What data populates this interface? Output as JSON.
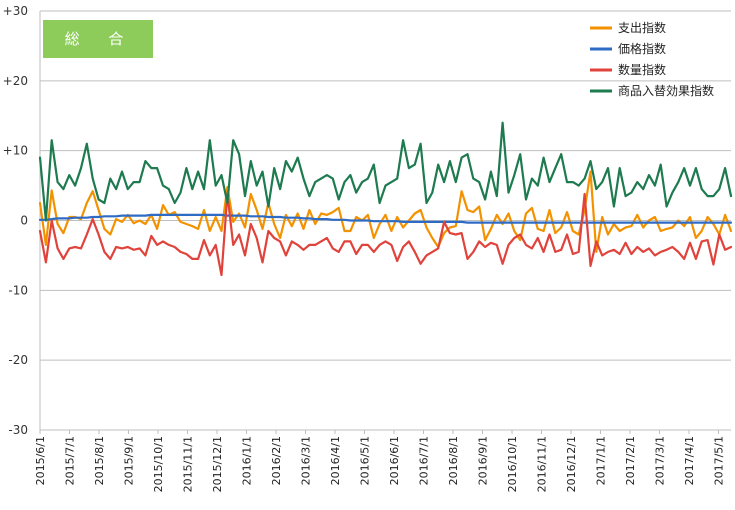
{
  "badge": {
    "label": "総 合",
    "color": "#8dcc5a"
  },
  "chart_data": {
    "type": "line",
    "ylim": [
      -30,
      30
    ],
    "yticks": [
      -30,
      -20,
      -10,
      0,
      10,
      20,
      30
    ],
    "ytick_labels": [
      "-30",
      "-20",
      "-10",
      "0",
      "+10",
      "+20",
      "+30"
    ],
    "grid": true,
    "legend_position": "top-right",
    "x_tick_labels": [
      "2015/6/1",
      "2015/7/1",
      "2015/8/1",
      "2015/9/1",
      "2015/10/1",
      "2015/11/1",
      "2015/12/1",
      "2016/1/1",
      "2016/2/1",
      "2016/3/1",
      "2016/4/1",
      "2016/5/1",
      "2016/6/1",
      "2016/7/1",
      "2016/8/1",
      "2016/9/1",
      "2016/10/1",
      "2016/11/1",
      "2016/12/1",
      "2017/1/1",
      "2017/2/1",
      "2017/3/1",
      "2017/4/1",
      "2017/5/1"
    ],
    "series": [
      {
        "name": "支出指数",
        "color": "#f39200",
        "values": [
          2.5,
          -3.5,
          4.3,
          -0.5,
          -1.8,
          0.5,
          0.5,
          0.2,
          2.5,
          4.2,
          1.5,
          -1.2,
          -2,
          0.2,
          -0.2,
          0.8,
          -0.4,
          0,
          -0.5,
          0.8,
          -1.2,
          2.2,
          0.8,
          1.2,
          -0.2,
          -0.5,
          -0.8,
          -1.2,
          1.5,
          -1.5,
          0.5,
          -1.5,
          4.8,
          -0.2,
          1,
          -1,
          3.8,
          1.5,
          -1.2,
          2.5,
          -0.5,
          -2.5,
          0.8,
          -0.8,
          1,
          -1.2,
          1.5,
          -0.5,
          1,
          0.8,
          1.2,
          1.8,
          -1.5,
          -1.5,
          0.5,
          0,
          0.8,
          -2.5,
          -0.5,
          0.8,
          -1.5,
          0.5,
          -1,
          0,
          1,
          1.5,
          -1,
          -2.5,
          -3.8,
          -1.8,
          -1,
          -0.8,
          4.2,
          1.5,
          1.2,
          2,
          -2.8,
          -1.2,
          0.8,
          -0.5,
          1,
          -1.5,
          -2.8,
          1,
          1.8,
          -1.2,
          -1.5,
          1.5,
          -1.8,
          -1,
          1.2,
          -1.5,
          -2,
          1.5,
          7,
          -4.5,
          0.5,
          -2,
          -0.5,
          -1.5,
          -1,
          -0.8,
          0.8,
          -1,
          0,
          0.5,
          -1.5,
          -1.2,
          -1,
          0,
          -0.8,
          0.5,
          -2.5,
          -1.5,
          0.5,
          -0.5,
          -2,
          0.8,
          -1.5
        ]
      },
      {
        "name": "価格指数",
        "color": "#2e6bc4",
        "values": [
          0.1,
          0.1,
          0.2,
          0.3,
          0.3,
          0.3,
          0.4,
          0.4,
          0.4,
          0.5,
          0.5,
          0.6,
          0.6,
          0.6,
          0.7,
          0.7,
          0.7,
          0.7,
          0.7,
          0.8,
          0.8,
          0.8,
          0.8,
          0.8,
          0.8,
          0.8,
          0.8,
          0.8,
          0.8,
          0.8,
          0.8,
          0.8,
          0.7,
          0.7,
          0.7,
          0.7,
          0.6,
          0.6,
          0.6,
          0.5,
          0.5,
          0.5,
          0.4,
          0.4,
          0.4,
          0.3,
          0.3,
          0.2,
          0.2,
          0.2,
          0.1,
          0.1,
          0.1,
          0,
          0,
          0,
          0,
          -0.1,
          -0.1,
          -0.1,
          -0.1,
          -0.1,
          -0.2,
          -0.2,
          -0.2,
          -0.2,
          -0.2,
          -0.2,
          -0.2,
          -0.2,
          -0.2,
          -0.2,
          -0.2,
          -0.3,
          -0.3,
          -0.3,
          -0.3,
          -0.3,
          -0.3,
          -0.3,
          -0.3,
          -0.3,
          -0.3,
          -0.3,
          -0.3,
          -0.3,
          -0.3,
          -0.3,
          -0.3,
          -0.3,
          -0.3,
          -0.3,
          -0.3,
          -0.3,
          -0.3,
          -0.3,
          -0.3,
          -0.3,
          -0.3,
          -0.3,
          -0.3,
          -0.3,
          -0.3,
          -0.3,
          -0.3,
          -0.3,
          -0.3,
          -0.3,
          -0.3,
          -0.3,
          -0.3,
          -0.3,
          -0.3,
          -0.3,
          -0.3,
          -0.3,
          -0.3,
          -0.3,
          -0.3
        ]
      },
      {
        "name": "数量指数",
        "color": "#e0433b",
        "values": [
          -1.5,
          -6,
          0,
          -4,
          -5.5,
          -4,
          -3.8,
          -4,
          -2,
          0.2,
          -2,
          -4.5,
          -5.5,
          -3.8,
          -4,
          -3.8,
          -4.2,
          -4,
          -5,
          -2.2,
          -3.5,
          -3,
          -3.5,
          -3.8,
          -4.5,
          -4.8,
          -5.5,
          -5.5,
          -2.8,
          -5,
          -3.5,
          -7.8,
          3.8,
          -3.5,
          -2,
          -5,
          -0.5,
          -2.5,
          -6,
          -1.5,
          -2.5,
          -3,
          -5,
          -3,
          -3.5,
          -4.2,
          -3.5,
          -3.5,
          -3,
          -2.5,
          -4,
          -4.5,
          -3,
          -3,
          -4.8,
          -3.5,
          -3.5,
          -4.5,
          -3.5,
          -3,
          -3.5,
          -5.8,
          -3.8,
          -3,
          -4.5,
          -6.2,
          -5,
          -4.5,
          -4,
          -0.2,
          -1.8,
          -2,
          -1.8,
          -5.5,
          -4.5,
          -3,
          -3.8,
          -3.2,
          -3.5,
          -6.2,
          -3.5,
          -2.5,
          -2,
          -3.5,
          -4,
          -2.5,
          -4.5,
          -2,
          -4.5,
          -4.2,
          -2,
          -4.8,
          -4.5,
          3.8,
          -6.5,
          -3,
          -5,
          -4.5,
          -4.2,
          -4.8,
          -3.2,
          -4.8,
          -3.8,
          -4.5,
          -4,
          -5,
          -4.5,
          -4.2,
          -3.8,
          -4.5,
          -5.5,
          -3.2,
          -5.5,
          -3,
          -2.8,
          -6.3,
          -2,
          -4.2,
          -3.8
        ]
      },
      {
        "name": "商品入替効果指数",
        "color": "#1e7a4f",
        "values": [
          9,
          0,
          11.5,
          5.5,
          4.5,
          6.5,
          5,
          7.5,
          11,
          6,
          3,
          2.5,
          6,
          4.5,
          7,
          4.5,
          5.5,
          5.5,
          8.5,
          7.5,
          7.5,
          5,
          4.5,
          2.5,
          4,
          7.5,
          4.5,
          7,
          4.5,
          11.5,
          5,
          6.5,
          2.5,
          11.5,
          9.5,
          3.5,
          8.5,
          5,
          7,
          2,
          7.5,
          4.5,
          8.5,
          7,
          9,
          6,
          3.5,
          5.5,
          6,
          6.5,
          6,
          3,
          5.5,
          6.5,
          4,
          5.5,
          6,
          8,
          2.5,
          5,
          5.5,
          6,
          11.5,
          7.5,
          8,
          11,
          2.5,
          4,
          8,
          5.5,
          8.5,
          5.5,
          9,
          9.5,
          6,
          5.5,
          3,
          7,
          3.5,
          14,
          4,
          6.5,
          9.5,
          3,
          6,
          5,
          9,
          5.5,
          7.5,
          9.5,
          5.5,
          5.5,
          5,
          6,
          8.5,
          4.5,
          5.5,
          7.5,
          2,
          7.5,
          3.5,
          4,
          5.5,
          4.5,
          6.5,
          5,
          8,
          2,
          4,
          5.5,
          7.5,
          5,
          7.5,
          4.5,
          3.5,
          3.5,
          4.5,
          7.5,
          3.5
        ]
      }
    ]
  }
}
